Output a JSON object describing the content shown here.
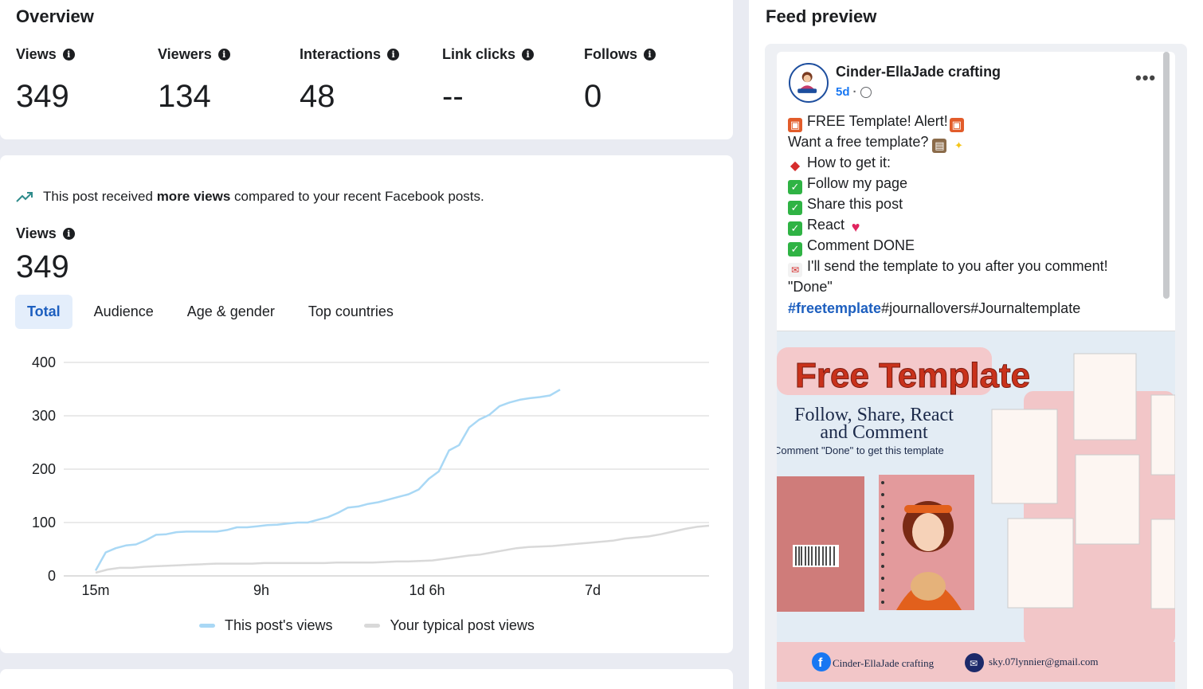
{
  "overview": {
    "title": "Overview",
    "metrics": [
      {
        "label": "Views",
        "value": "349"
      },
      {
        "label": "Viewers",
        "value": "134"
      },
      {
        "label": "Interactions",
        "value": "48"
      },
      {
        "label": "Link clicks",
        "value": "--"
      },
      {
        "label": "Follows",
        "value": "0"
      }
    ]
  },
  "insight": {
    "prefix": "This post received ",
    "bold": "more views",
    "suffix": " compared to your recent Facebook posts."
  },
  "views": {
    "label": "Views",
    "value": "349"
  },
  "tabs": [
    {
      "label": "Total",
      "active": true
    },
    {
      "label": "Audience",
      "active": false
    },
    {
      "label": "Age & gender",
      "active": false
    },
    {
      "label": "Top countries",
      "active": false
    }
  ],
  "chart_data": {
    "type": "line",
    "x_tick_labels": [
      "15m",
      "9h",
      "1d 6h",
      "7d"
    ],
    "ylim": [
      0,
      400
    ],
    "yticks": [
      0,
      100,
      200,
      300,
      400
    ],
    "grid": true,
    "legend_position": "bottom",
    "series": [
      {
        "name": "This post's views",
        "color": "#a9d8f5",
        "values": [
          10,
          44,
          52,
          57,
          59,
          67,
          77,
          78,
          82,
          83,
          83,
          83,
          83,
          86,
          91,
          91,
          93,
          95,
          96,
          98,
          100,
          100,
          105,
          110,
          118,
          128,
          130,
          135,
          138,
          143,
          148,
          153,
          162,
          182,
          196,
          235,
          245,
          278,
          293,
          302,
          318,
          325,
          330,
          333,
          335,
          338,
          349
        ]
      },
      {
        "name": "Your typical post views",
        "color": "#d9d9d9",
        "values": [
          6,
          12,
          15,
          15,
          17,
          18,
          19,
          20,
          21,
          22,
          23,
          23,
          23,
          23,
          24,
          24,
          24,
          24,
          24,
          24,
          25,
          25,
          25,
          25,
          26,
          27,
          27,
          28,
          29,
          32,
          35,
          38,
          40,
          44,
          48,
          52,
          54,
          55,
          56,
          58,
          60,
          62,
          64,
          66,
          70,
          72,
          74,
          78,
          83,
          88,
          92,
          94
        ]
      }
    ]
  },
  "feed": {
    "title": "Feed preview",
    "page_name": "Cinder-EllaJade crafting",
    "time": "5d",
    "dot": "·",
    "more": "•••",
    "lines": [
      {
        "icon": "gift",
        "text": "FREE  Template! Alert!",
        "trail": "gift"
      },
      {
        "icon": "",
        "text": "Want a free  template? ",
        "trail": "book-sparkle"
      },
      {
        "icon": "pin",
        "text": "How to get it:"
      },
      {
        "icon": "check",
        "text": "Follow my page"
      },
      {
        "icon": "check",
        "text": "Share this post"
      },
      {
        "icon": "check",
        "text": "React ",
        "trail": "heart"
      },
      {
        "icon": "check",
        "text": "Comment DONE"
      },
      {
        "icon": "mail",
        "text": "I'll send the template to you after you comment!"
      },
      {
        "icon": "",
        "text": "\"Done\""
      }
    ],
    "hashtag_highlight": "#freetemplate",
    "hashtag_rest": "#journallovers#Journaltemplate",
    "image": {
      "headline": "Free Template",
      "sub1": "Follow, Share, React",
      "sub2": "and Comment",
      "sub3": "Comment \"Done\" to get this template",
      "footer_page": "Cinder-EllaJade crafting",
      "footer_email": "sky.07lynnier@gmail.com"
    }
  }
}
